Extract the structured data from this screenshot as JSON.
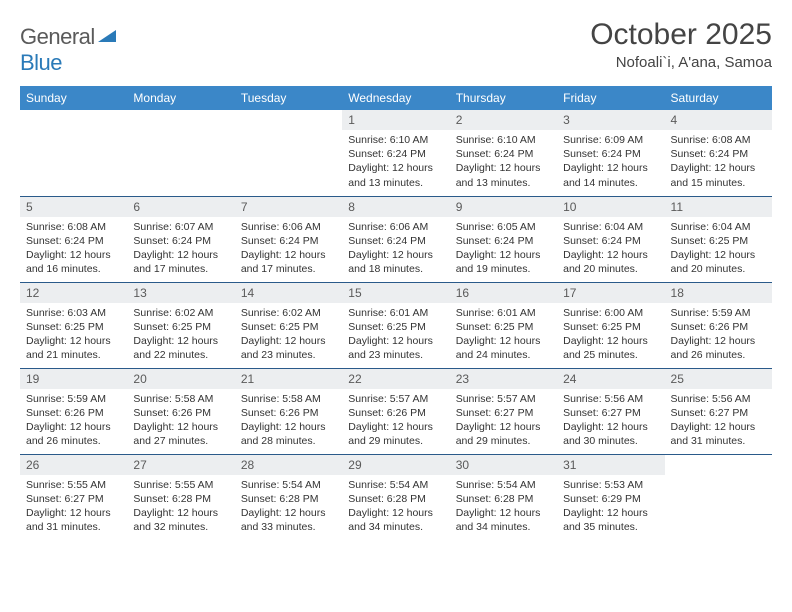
{
  "logo": {
    "text1": "General",
    "text2": "Blue"
  },
  "title": "October 2025",
  "location": "Nofoali`i, A'ana, Samoa",
  "header_bg": "#3b87c8",
  "header_fg": "#ffffff",
  "daynum_bg": "#eceef0",
  "rule_color": "#2a5a8a",
  "days": [
    "Sunday",
    "Monday",
    "Tuesday",
    "Wednesday",
    "Thursday",
    "Friday",
    "Saturday"
  ],
  "weeks": [
    [
      null,
      null,
      null,
      {
        "n": "1",
        "sr": "6:10 AM",
        "ss": "6:24 PM",
        "dl": "12 hours and 13 minutes."
      },
      {
        "n": "2",
        "sr": "6:10 AM",
        "ss": "6:24 PM",
        "dl": "12 hours and 13 minutes."
      },
      {
        "n": "3",
        "sr": "6:09 AM",
        "ss": "6:24 PM",
        "dl": "12 hours and 14 minutes."
      },
      {
        "n": "4",
        "sr": "6:08 AM",
        "ss": "6:24 PM",
        "dl": "12 hours and 15 minutes."
      }
    ],
    [
      {
        "n": "5",
        "sr": "6:08 AM",
        "ss": "6:24 PM",
        "dl": "12 hours and 16 minutes."
      },
      {
        "n": "6",
        "sr": "6:07 AM",
        "ss": "6:24 PM",
        "dl": "12 hours and 17 minutes."
      },
      {
        "n": "7",
        "sr": "6:06 AM",
        "ss": "6:24 PM",
        "dl": "12 hours and 17 minutes."
      },
      {
        "n": "8",
        "sr": "6:06 AM",
        "ss": "6:24 PM",
        "dl": "12 hours and 18 minutes."
      },
      {
        "n": "9",
        "sr": "6:05 AM",
        "ss": "6:24 PM",
        "dl": "12 hours and 19 minutes."
      },
      {
        "n": "10",
        "sr": "6:04 AM",
        "ss": "6:24 PM",
        "dl": "12 hours and 20 minutes."
      },
      {
        "n": "11",
        "sr": "6:04 AM",
        "ss": "6:25 PM",
        "dl": "12 hours and 20 minutes."
      }
    ],
    [
      {
        "n": "12",
        "sr": "6:03 AM",
        "ss": "6:25 PM",
        "dl": "12 hours and 21 minutes."
      },
      {
        "n": "13",
        "sr": "6:02 AM",
        "ss": "6:25 PM",
        "dl": "12 hours and 22 minutes."
      },
      {
        "n": "14",
        "sr": "6:02 AM",
        "ss": "6:25 PM",
        "dl": "12 hours and 23 minutes."
      },
      {
        "n": "15",
        "sr": "6:01 AM",
        "ss": "6:25 PM",
        "dl": "12 hours and 23 minutes."
      },
      {
        "n": "16",
        "sr": "6:01 AM",
        "ss": "6:25 PM",
        "dl": "12 hours and 24 minutes."
      },
      {
        "n": "17",
        "sr": "6:00 AM",
        "ss": "6:25 PM",
        "dl": "12 hours and 25 minutes."
      },
      {
        "n": "18",
        "sr": "5:59 AM",
        "ss": "6:26 PM",
        "dl": "12 hours and 26 minutes."
      }
    ],
    [
      {
        "n": "19",
        "sr": "5:59 AM",
        "ss": "6:26 PM",
        "dl": "12 hours and 26 minutes."
      },
      {
        "n": "20",
        "sr": "5:58 AM",
        "ss": "6:26 PM",
        "dl": "12 hours and 27 minutes."
      },
      {
        "n": "21",
        "sr": "5:58 AM",
        "ss": "6:26 PM",
        "dl": "12 hours and 28 minutes."
      },
      {
        "n": "22",
        "sr": "5:57 AM",
        "ss": "6:26 PM",
        "dl": "12 hours and 29 minutes."
      },
      {
        "n": "23",
        "sr": "5:57 AM",
        "ss": "6:27 PM",
        "dl": "12 hours and 29 minutes."
      },
      {
        "n": "24",
        "sr": "5:56 AM",
        "ss": "6:27 PM",
        "dl": "12 hours and 30 minutes."
      },
      {
        "n": "25",
        "sr": "5:56 AM",
        "ss": "6:27 PM",
        "dl": "12 hours and 31 minutes."
      }
    ],
    [
      {
        "n": "26",
        "sr": "5:55 AM",
        "ss": "6:27 PM",
        "dl": "12 hours and 31 minutes."
      },
      {
        "n": "27",
        "sr": "5:55 AM",
        "ss": "6:28 PM",
        "dl": "12 hours and 32 minutes."
      },
      {
        "n": "28",
        "sr": "5:54 AM",
        "ss": "6:28 PM",
        "dl": "12 hours and 33 minutes."
      },
      {
        "n": "29",
        "sr": "5:54 AM",
        "ss": "6:28 PM",
        "dl": "12 hours and 34 minutes."
      },
      {
        "n": "30",
        "sr": "5:54 AM",
        "ss": "6:28 PM",
        "dl": "12 hours and 34 minutes."
      },
      {
        "n": "31",
        "sr": "5:53 AM",
        "ss": "6:29 PM",
        "dl": "12 hours and 35 minutes."
      },
      null
    ]
  ],
  "labels": {
    "sunrise": "Sunrise:",
    "sunset": "Sunset:",
    "daylight": "Daylight:"
  }
}
